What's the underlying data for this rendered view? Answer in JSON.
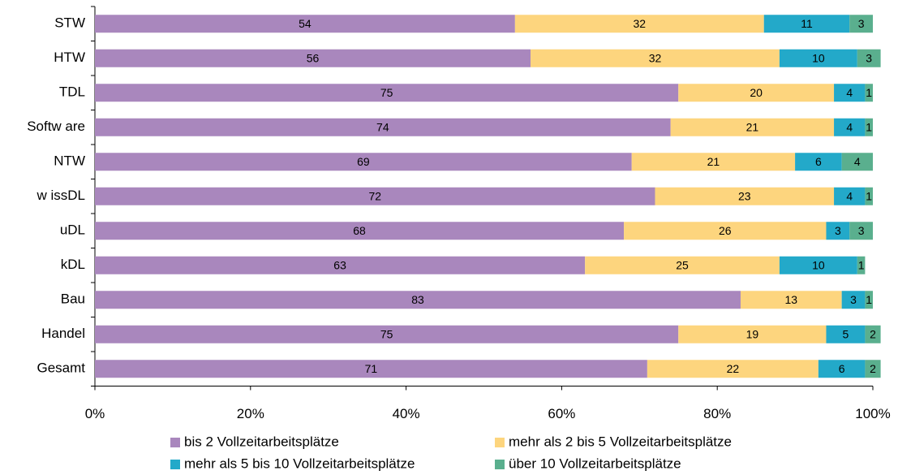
{
  "chart_data": {
    "type": "stacked_barh",
    "categories": [
      "STW",
      "HTW",
      "TDL",
      "Softw are",
      "NTW",
      "w issDL",
      "uDL",
      "kDL",
      "Bau",
      "Handel",
      "Gesamt"
    ],
    "series": [
      {
        "name": "bis 2 Vollzeitarbeitsplätze",
        "color": "#a987bd",
        "values": [
          54,
          56,
          75,
          74,
          69,
          72,
          68,
          63,
          83,
          75,
          71
        ]
      },
      {
        "name": "mehr als 2 bis 5 Vollzeitarbeitsplätze",
        "color": "#fdd57e",
        "values": [
          32,
          32,
          20,
          21,
          21,
          23,
          26,
          25,
          13,
          19,
          22
        ]
      },
      {
        "name": "mehr als 5 bis 10 Vollzeitarbeitsplätze",
        "color": "#23a9c9",
        "values": [
          11,
          10,
          4,
          4,
          6,
          4,
          3,
          10,
          3,
          5,
          6
        ]
      },
      {
        "name": "über 10 Vollzeitarbeitsplätze",
        "color": "#5aaf8e",
        "values": [
          3,
          3,
          1,
          1,
          4,
          1,
          3,
          1,
          1,
          2,
          2
        ]
      }
    ],
    "xlim": [
      0,
      100
    ],
    "xticks": [
      {
        "value": 0,
        "label": "0%"
      },
      {
        "value": 20,
        "label": "20%"
      },
      {
        "value": 40,
        "label": "40%"
      },
      {
        "value": 60,
        "label": "60%"
      },
      {
        "value": 80,
        "label": "80%"
      },
      {
        "value": 100,
        "label": "100%"
      }
    ],
    "legend": "bottom"
  }
}
